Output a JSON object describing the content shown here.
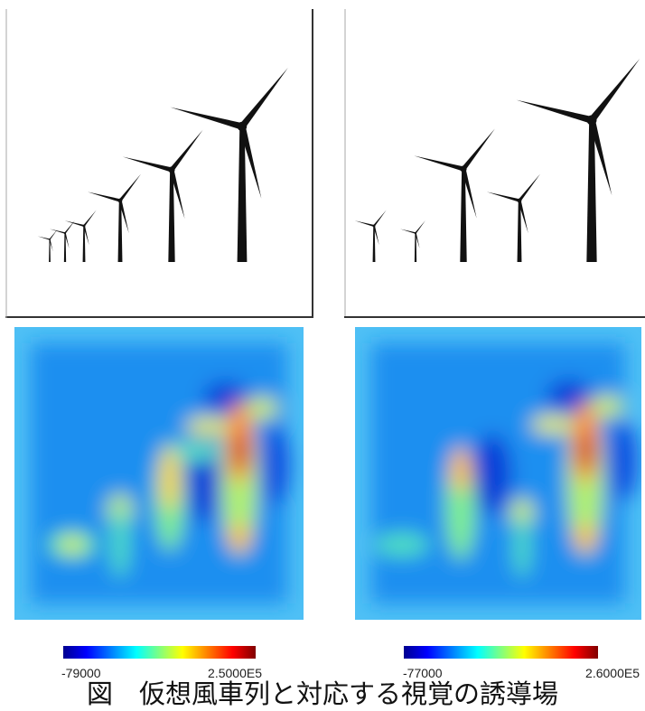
{
  "panels": [
    {
      "colorbar": {
        "min_label": "-79000",
        "max_label": "2.5000E5"
      }
    },
    {
      "colorbar": {
        "min_label": "-77000",
        "max_label": "2.6000E5"
      }
    }
  ],
  "caption": "図　仮想風車列と対応する視覚の誘導場"
}
